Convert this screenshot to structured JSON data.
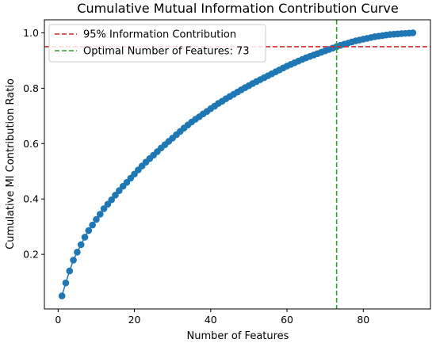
{
  "chart_data": {
    "type": "line",
    "title": "Cumulative Mutual Information Contribution Curve",
    "xlabel": "Number of Features",
    "ylabel": "Cumulative MI Contribution Ratio",
    "xlim": [
      -3.6,
      97.6
    ],
    "ylim": [
      0.003,
      1.047
    ],
    "xticks": [
      0,
      20,
      40,
      60,
      80
    ],
    "yticks": [
      0.2,
      0.4,
      0.6,
      0.8,
      1.0
    ],
    "grid": false,
    "legend_position": "top-left",
    "series": [
      {
        "color": "#1f77b4",
        "x": [
          1,
          2,
          3,
          4,
          5,
          6,
          7,
          8,
          9,
          10,
          11,
          12,
          13,
          14,
          15,
          16,
          17,
          18,
          19,
          20,
          21,
          22,
          23,
          24,
          25,
          26,
          27,
          28,
          29,
          30,
          31,
          32,
          33,
          34,
          35,
          36,
          37,
          38,
          39,
          40,
          41,
          42,
          43,
          44,
          45,
          46,
          47,
          48,
          49,
          50,
          51,
          52,
          53,
          54,
          55,
          56,
          57,
          58,
          59,
          60,
          61,
          62,
          63,
          64,
          65,
          66,
          67,
          68,
          69,
          70,
          71,
          72,
          73,
          74,
          75,
          76,
          77,
          78,
          79,
          80,
          81,
          82,
          83,
          84,
          85,
          86,
          87,
          88,
          89,
          90,
          91,
          92,
          93
        ],
        "y": [
          0.05,
          0.097,
          0.14,
          0.179,
          0.208,
          0.235,
          0.262,
          0.286,
          0.306,
          0.326,
          0.345,
          0.365,
          0.381,
          0.397,
          0.414,
          0.43,
          0.446,
          0.46,
          0.475,
          0.49,
          0.505,
          0.519,
          0.533,
          0.546,
          0.558,
          0.571,
          0.584,
          0.596,
          0.608,
          0.62,
          0.632,
          0.644,
          0.656,
          0.667,
          0.678,
          0.688,
          0.697,
          0.707,
          0.716,
          0.726,
          0.735,
          0.745,
          0.753,
          0.762,
          0.77,
          0.778,
          0.786,
          0.794,
          0.802,
          0.809,
          0.817,
          0.824,
          0.831,
          0.838,
          0.845,
          0.852,
          0.859,
          0.866,
          0.873,
          0.88,
          0.886,
          0.892,
          0.898,
          0.904,
          0.91,
          0.915,
          0.92,
          0.925,
          0.93,
          0.935,
          0.94,
          0.945,
          0.95,
          0.955,
          0.959,
          0.963,
          0.967,
          0.971,
          0.974,
          0.977,
          0.98,
          0.983,
          0.986,
          0.988,
          0.99,
          0.992,
          0.994,
          0.995,
          0.996,
          0.997,
          0.998,
          0.999,
          1.0
        ]
      }
    ],
    "reference_lines": [
      {
        "orientation": "horizontal",
        "value": 0.95,
        "color": "#d62728",
        "label": "95% Information Contribution"
      },
      {
        "orientation": "vertical",
        "value": 73,
        "color": "#2ca02c",
        "label": "Optimal Number of Features: 73"
      }
    ]
  }
}
